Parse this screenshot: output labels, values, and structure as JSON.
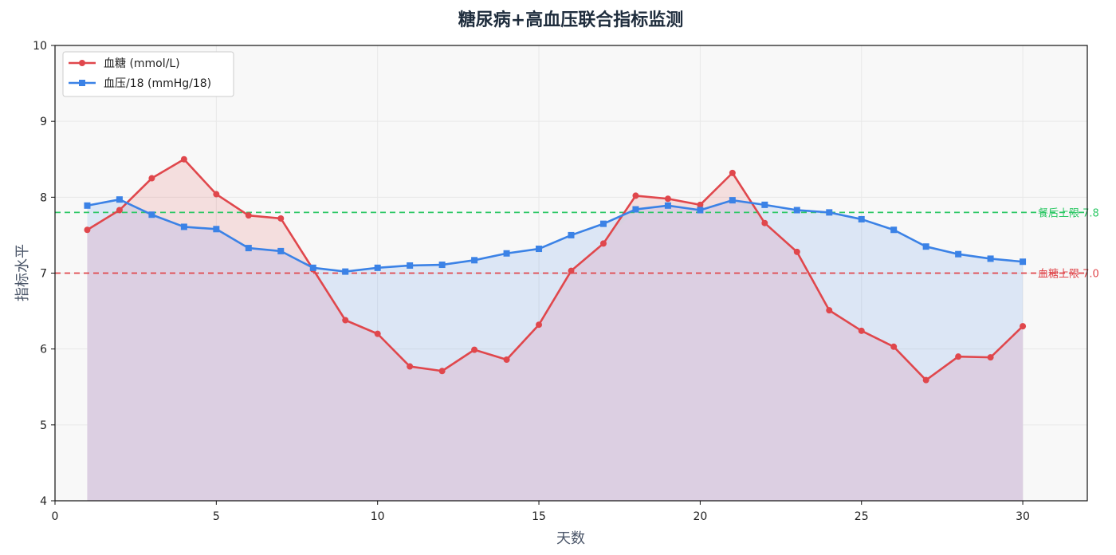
{
  "colors": {
    "glucose": "#e0474c",
    "bp": "#3b82e6",
    "postprandial_line": "#2ec866",
    "glucose_line": "#e0474c",
    "plot_bg": "#f8f8f8",
    "overlap_fill": "#dccfe2"
  },
  "chart_data": {
    "type": "line",
    "title": "糖尿病+高血压联合指标监测",
    "xlabel": "天数",
    "ylabel": "指标水平",
    "xlim": [
      0,
      32
    ],
    "ylim": [
      4,
      10
    ],
    "xticks": [
      0,
      5,
      10,
      15,
      20,
      25,
      30
    ],
    "yticks": [
      4,
      5,
      6,
      7,
      8,
      9,
      10
    ],
    "grid": true,
    "legend_position": "top-left",
    "x": [
      1,
      2,
      3,
      4,
      5,
      6,
      7,
      8,
      9,
      10,
      11,
      12,
      13,
      14,
      15,
      16,
      17,
      18,
      19,
      20,
      21,
      22,
      23,
      24,
      25,
      26,
      27,
      28,
      29,
      30
    ],
    "series": [
      {
        "name": "血糖 (mmol/L)",
        "color_key": "glucose",
        "marker": "circle",
        "values": [
          7.57,
          7.83,
          8.25,
          8.5,
          8.04,
          7.76,
          7.72,
          7.05,
          6.38,
          6.2,
          5.77,
          5.71,
          5.99,
          5.86,
          6.32,
          7.03,
          7.39,
          8.02,
          7.98,
          7.9,
          8.32,
          7.66,
          7.28,
          6.51,
          6.24,
          6.03,
          5.59,
          5.9,
          5.89,
          6.3
        ]
      },
      {
        "name": "血压/18 (mmHg/18)",
        "color_key": "bp",
        "marker": "square",
        "values": [
          7.89,
          7.97,
          7.77,
          7.61,
          7.58,
          7.33,
          7.29,
          7.07,
          7.02,
          7.07,
          7.1,
          7.11,
          7.17,
          7.26,
          7.32,
          7.5,
          7.65,
          7.84,
          7.89,
          7.83,
          7.96,
          7.9,
          7.83,
          7.8,
          7.71,
          7.57,
          7.35,
          7.25,
          7.19,
          7.15
        ]
      }
    ],
    "reference_lines": [
      {
        "value": 7.8,
        "label": "餐后上限 7.8",
        "color_key": "postprandial_line"
      },
      {
        "value": 7.0,
        "label": "血糖上限 7.0",
        "color_key": "glucose_line"
      }
    ]
  }
}
